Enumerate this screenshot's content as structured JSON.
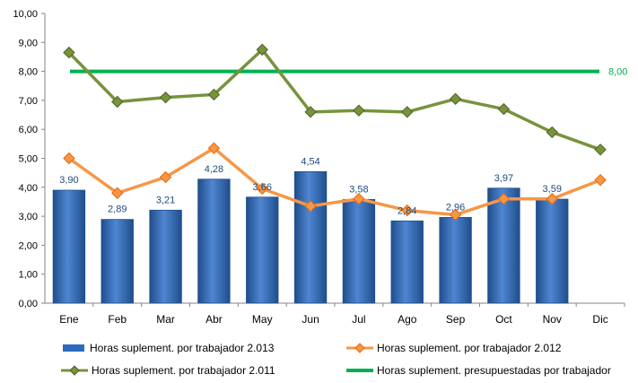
{
  "chart_data": {
    "type": "bar",
    "categories": [
      "Ene",
      "Feb",
      "Mar",
      "Abr",
      "May",
      "Jun",
      "Jul",
      "Ago",
      "Sep",
      "Oct",
      "Nov",
      "Dic"
    ],
    "y_ticks": [
      "0,00",
      "1,00",
      "2,00",
      "3,00",
      "4,00",
      "5,00",
      "6,00",
      "7,00",
      "8,00",
      "9,00",
      "10,00"
    ],
    "ylim": [
      0,
      10
    ],
    "series": [
      {
        "name": "Horas suplement. por trabajador 2.013",
        "kind": "bar",
        "color": "#2e6bbd",
        "values": [
          3.9,
          2.89,
          3.21,
          4.28,
          3.66,
          4.54,
          3.58,
          2.84,
          2.96,
          3.97,
          3.59,
          null
        ],
        "labels": [
          "3,90",
          "2,89",
          "3,21",
          "4,28",
          "3,66",
          "4,54",
          "3,58",
          "2,84",
          "2,96",
          "3,97",
          "3,59",
          ""
        ]
      },
      {
        "name": "Horas suplement. por trabajador 2.012",
        "kind": "line",
        "color": "#f79646",
        "values": [
          5.0,
          3.8,
          4.35,
          5.35,
          3.95,
          3.35,
          3.6,
          3.2,
          3.05,
          3.6,
          3.6,
          4.25
        ]
      },
      {
        "name": "Horas suplement. por trabajador 2.011",
        "kind": "line",
        "color": "#77933c",
        "values": [
          8.65,
          6.95,
          7.1,
          7.2,
          8.75,
          6.6,
          6.65,
          6.6,
          7.05,
          6.7,
          5.9,
          5.3
        ]
      },
      {
        "name": "Horas suplement. presupuestadas por trabajador",
        "kind": "line",
        "color": "#00b050",
        "values": [
          8.0,
          8.0,
          8.0,
          8.0,
          8.0,
          8.0,
          8.0,
          8.0,
          8.0,
          8.0,
          8.0,
          8.0
        ],
        "end_label": "8,00"
      }
    ],
    "grid": false,
    "legend_position": "bottom"
  }
}
